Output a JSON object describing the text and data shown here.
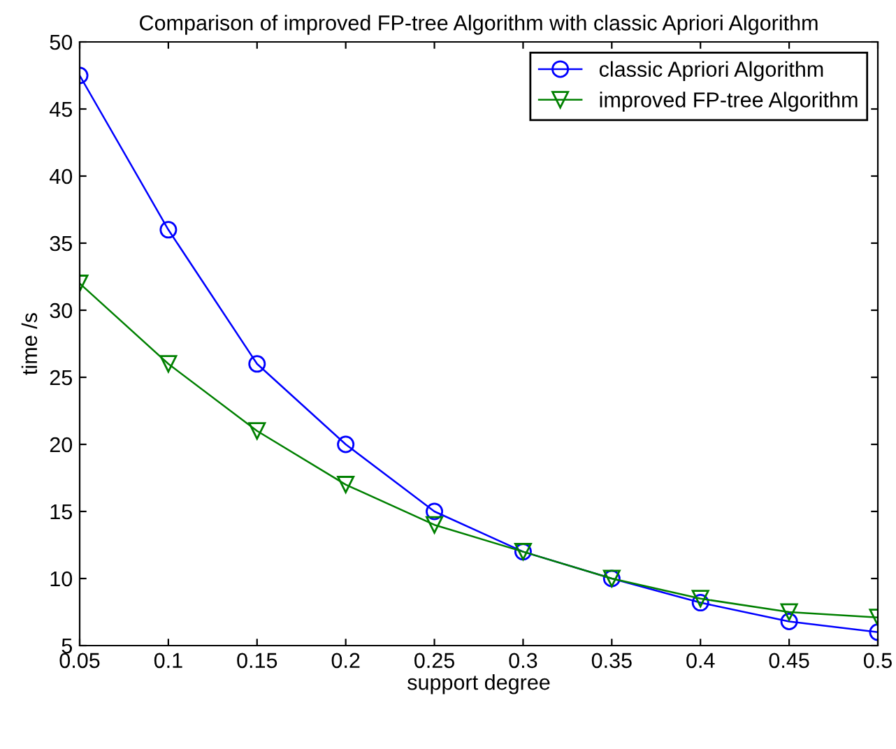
{
  "chart_data": {
    "type": "line",
    "title": "Comparison of improved FP-tree Algorithm with classic Apriori Algorithm",
    "xlabel": "support degree",
    "ylabel": "time /s",
    "x": [
      0.05,
      0.1,
      0.15,
      0.2,
      0.25,
      0.3,
      0.35,
      0.4,
      0.45,
      0.5
    ],
    "series": [
      {
        "name": "classic Apriori Algorithm",
        "color": "#0000ff",
        "marker": "circle",
        "values": [
          47.5,
          36,
          26,
          20,
          15,
          12,
          10,
          8.2,
          6.8,
          6
        ]
      },
      {
        "name": "improved FP-tree Algorithm",
        "color": "#008000",
        "marker": "triangle",
        "values": [
          32,
          26,
          21,
          17,
          14,
          12,
          10,
          8.5,
          7.5,
          7.1
        ]
      }
    ],
    "xlim": [
      0.05,
      0.5
    ],
    "xticks": [
      0.05,
      0.1,
      0.15,
      0.2,
      0.25,
      0.3,
      0.35,
      0.4,
      0.45,
      0.5
    ],
    "ylim": [
      5,
      50
    ],
    "yticks": [
      5,
      10,
      15,
      20,
      25,
      30,
      35,
      40,
      45,
      50
    ],
    "grid": false,
    "legend": "top right",
    "line_style": "solid"
  }
}
